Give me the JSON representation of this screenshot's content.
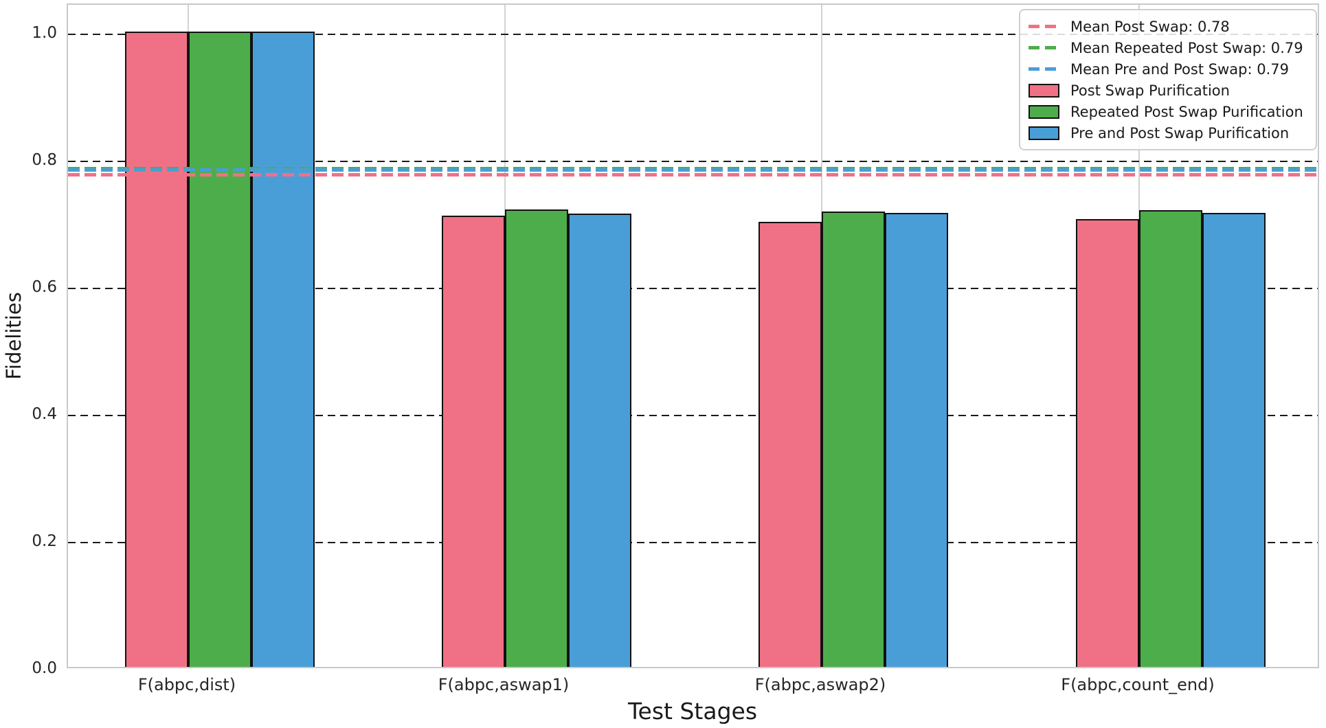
{
  "chart_data": {
    "type": "bar",
    "title": "",
    "xlabel": "Test Stages",
    "ylabel": "Fidelities",
    "categories": [
      "F(abpc,dist)",
      "F(abpc,aswap1)",
      "F(abpc,aswap2)",
      "F(abpc,count_end)"
    ],
    "series": [
      {
        "name": "Post Swap Purification",
        "color": "#f07186",
        "values": [
          1.0,
          0.71,
          0.7,
          0.705
        ]
      },
      {
        "name": "Repeated Post Swap Purification",
        "color": "#4ead4b",
        "values": [
          1.0,
          0.72,
          0.717,
          0.719
        ]
      },
      {
        "name": "Pre and Post Swap Purification",
        "color": "#4a9ed8",
        "values": [
          1.0,
          0.713,
          0.715,
          0.715
        ]
      }
    ],
    "mean_lines": [
      {
        "label": "Mean Post Swap: 0.78",
        "value": 0.779,
        "color": "#f07186"
      },
      {
        "label": "Mean Repeated Post Swap: 0.79",
        "value": 0.789,
        "color": "#4ead4b"
      },
      {
        "label": "Mean Pre and Post Swap: 0.79",
        "value": 0.786,
        "color": "#4a9ed8"
      }
    ],
    "yticks": [
      0.0,
      0.2,
      0.4,
      0.6,
      0.8,
      1.0
    ],
    "ylim": [
      0.0,
      1.046
    ],
    "grid": true,
    "legend_position": "upper right",
    "bar_edge_color": "#111111",
    "grid_colors": {
      "y_dashed": "#1a1a1a",
      "x_solid": "#d2d2d2",
      "spine": "#c9c9c9"
    }
  }
}
